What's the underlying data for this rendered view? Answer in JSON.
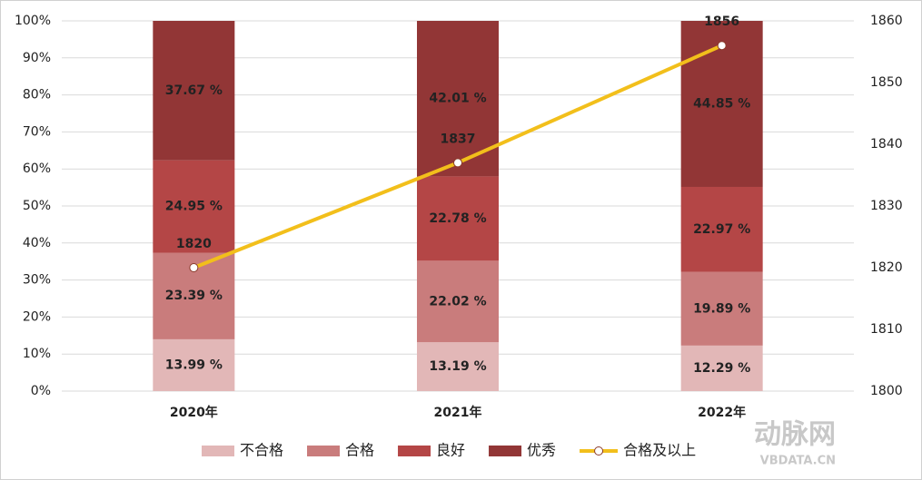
{
  "chart_data": {
    "type": "stacked-bar-line",
    "categories": [
      "2020年",
      "2021年",
      "2022年"
    ],
    "series": [
      {
        "name": "不合格",
        "color": "#e2b7b7",
        "values": [
          13.99,
          13.19,
          12.29
        ],
        "value_labels": [
          "13.99 %",
          "13.19 %",
          "12.29 %"
        ]
      },
      {
        "name": "合格",
        "color": "#c97c7c",
        "values": [
          23.39,
          22.02,
          19.89
        ],
        "value_labels": [
          "23.39 %",
          "22.02 %",
          "19.89 %"
        ]
      },
      {
        "name": "良好",
        "color": "#b44646",
        "values": [
          24.95,
          22.78,
          22.97
        ],
        "value_labels": [
          "24.95 %",
          "22.78 %",
          "22.97 %"
        ]
      },
      {
        "name": "优秀",
        "color": "#923636",
        "values": [
          37.67,
          42.01,
          44.85
        ],
        "value_labels": [
          "37.67 %",
          "42.01 %",
          "44.85 %"
        ]
      },
      {
        "name": "合格及以上",
        "color": "#f2bf1b",
        "axis": "y2",
        "type": "line",
        "values": [
          1820,
          1837,
          1856
        ]
      }
    ],
    "ylim": [
      0,
      100
    ],
    "yticks": [
      {
        "value": 0,
        "label": "0%"
      },
      {
        "value": 10,
        "label": "10%"
      },
      {
        "value": 20,
        "label": "20%"
      },
      {
        "value": 30,
        "label": "30%"
      },
      {
        "value": 40,
        "label": "40%"
      },
      {
        "value": 50,
        "label": "50%"
      },
      {
        "value": 60,
        "label": "60%"
      },
      {
        "value": 70,
        "label": "70%"
      },
      {
        "value": 80,
        "label": "80%"
      },
      {
        "value": 90,
        "label": "90%"
      },
      {
        "value": 100,
        "label": "100%"
      }
    ],
    "y2lim": [
      1800,
      1860
    ],
    "y2ticks": [
      1800,
      1810,
      1820,
      1830,
      1840,
      1850,
      1860
    ],
    "grid": true,
    "legend": "bottom",
    "watermark": [
      "动脉网",
      "VBDATA.CN"
    ]
  }
}
